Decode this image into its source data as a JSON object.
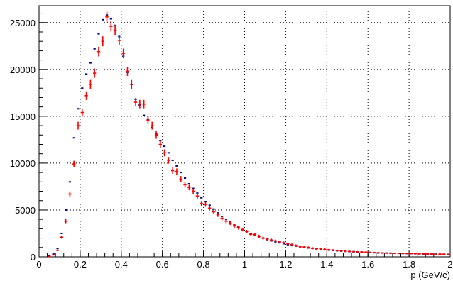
{
  "chart_data": {
    "type": "scatter",
    "style": "ROOT histogram with error bars, dotted grid on both axes",
    "xlabel": "p (GeV/c)",
    "ylabel": "",
    "title": "",
    "xlim": [
      0,
      2
    ],
    "ylim": [
      0,
      26800
    ],
    "grid": true,
    "x_ticks": [
      "0",
      "0.2",
      "0.4",
      "0.6",
      "0.8",
      "1",
      "1.2",
      "1.4",
      "1.6",
      "1.8",
      "2"
    ],
    "y_ticks": [
      "0",
      "5000",
      "10000",
      "15000",
      "20000",
      "25000"
    ],
    "bin_width": 0.02,
    "x": [
      0.01,
      0.03,
      0.05,
      0.07,
      0.09,
      0.11,
      0.13,
      0.15,
      0.17,
      0.19,
      0.21,
      0.23,
      0.25,
      0.27,
      0.29,
      0.31,
      0.33,
      0.35,
      0.37,
      0.39,
      0.41,
      0.43,
      0.45,
      0.47,
      0.49,
      0.51,
      0.53,
      0.55,
      0.57,
      0.59,
      0.61,
      0.63,
      0.65,
      0.67,
      0.69,
      0.71,
      0.73,
      0.75,
      0.77,
      0.79,
      0.81,
      0.83,
      0.85,
      0.87,
      0.89,
      0.91,
      0.93,
      0.95,
      0.97,
      0.99,
      1.01,
      1.03,
      1.05,
      1.07,
      1.09,
      1.11,
      1.13,
      1.15,
      1.17,
      1.19,
      1.21,
      1.23,
      1.25,
      1.27,
      1.29,
      1.31,
      1.33,
      1.35,
      1.37,
      1.39,
      1.41,
      1.43,
      1.45,
      1.47,
      1.49,
      1.51,
      1.53,
      1.55,
      1.57,
      1.59,
      1.61,
      1.63,
      1.65,
      1.67,
      1.69,
      1.71,
      1.73,
      1.75,
      1.77,
      1.79,
      1.81,
      1.83,
      1.85,
      1.87,
      1.89,
      1.91,
      1.93,
      1.95,
      1.97,
      1.99
    ],
    "series": [
      {
        "color": "#00007f",
        "marker": "horizontal tick",
        "values": [
          0,
          0,
          100,
          300,
          900,
          2500,
          5000,
          8000,
          12700,
          15800,
          18000,
          19500,
          20700,
          22200,
          23800,
          25300,
          25800,
          25400,
          24700,
          23500,
          21400,
          19700,
          18400,
          16800,
          16200,
          15100,
          14700,
          13800,
          13100,
          12400,
          11800,
          11100,
          10300,
          9700,
          9000,
          8400,
          7800,
          7300,
          6800,
          6300,
          5900,
          5500,
          5100,
          4700,
          4300,
          4000,
          3700,
          3400,
          3200,
          2900,
          2700,
          2500,
          2300,
          2150,
          2000,
          1850,
          1700,
          1600,
          1500,
          1400,
          1300,
          1200,
          1150,
          1080,
          1000,
          950,
          900,
          850,
          800,
          750,
          720,
          690,
          650,
          620,
          590,
          560,
          540,
          520,
          500,
          480,
          460,
          440,
          420,
          410,
          400,
          390,
          380,
          370,
          360,
          350,
          340,
          330,
          320,
          310,
          300,
          295,
          290,
          285,
          280,
          275
        ]
      },
      {
        "color": "#ff0000",
        "marker": "cross with error bars",
        "values": [
          0,
          0,
          50,
          200,
          700,
          2100,
          3800,
          6700,
          9900,
          14000,
          15400,
          17200,
          18400,
          19600,
          21900,
          23000,
          25600,
          24600,
          24200,
          23100,
          21700,
          19800,
          18400,
          16500,
          16300,
          16300,
          14600,
          14000,
          13000,
          12000,
          11100,
          10300,
          9200,
          9100,
          8300,
          7700,
          7400,
          7000,
          6500,
          5700,
          5600,
          5200,
          4800,
          4500,
          4100,
          3800,
          3600,
          3300,
          3100,
          2900,
          2700,
          2400,
          2400,
          2200,
          2000,
          1900,
          1800,
          1700,
          1600,
          1500,
          1400,
          1300,
          1200,
          1100,
          1050,
          1000,
          930,
          880,
          850,
          800,
          760,
          720,
          680,
          640,
          600,
          580,
          560,
          540,
          520,
          500,
          480,
          460,
          440,
          420,
          410,
          400,
          390,
          380,
          370,
          360,
          350,
          340,
          330,
          320,
          310,
          300,
          295,
          290,
          285,
          280
        ]
      }
    ]
  }
}
